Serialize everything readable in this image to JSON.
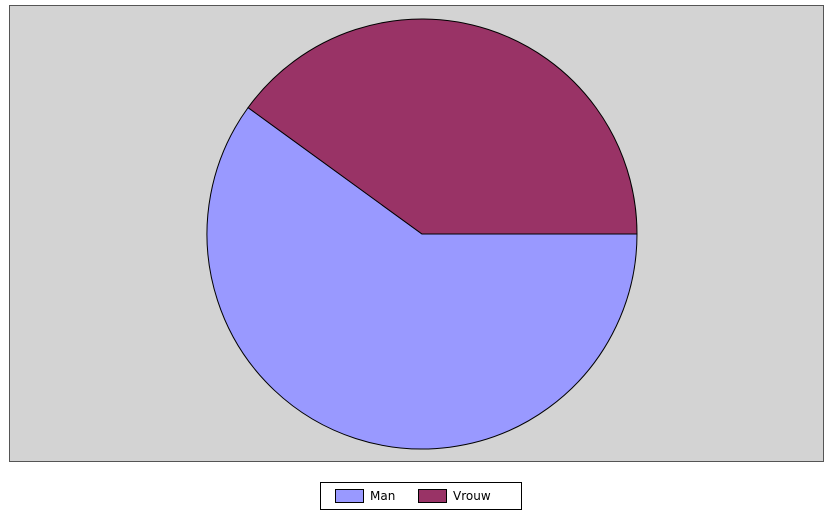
{
  "chart_data": {
    "type": "pie",
    "slices": [
      {
        "label": "Man",
        "value": 60,
        "color": "#9999ff"
      },
      {
        "label": "Vrouw",
        "value": 40,
        "color": "#993366"
      }
    ],
    "legend_position": "bottom",
    "plot_background": "#d3d3d3"
  }
}
